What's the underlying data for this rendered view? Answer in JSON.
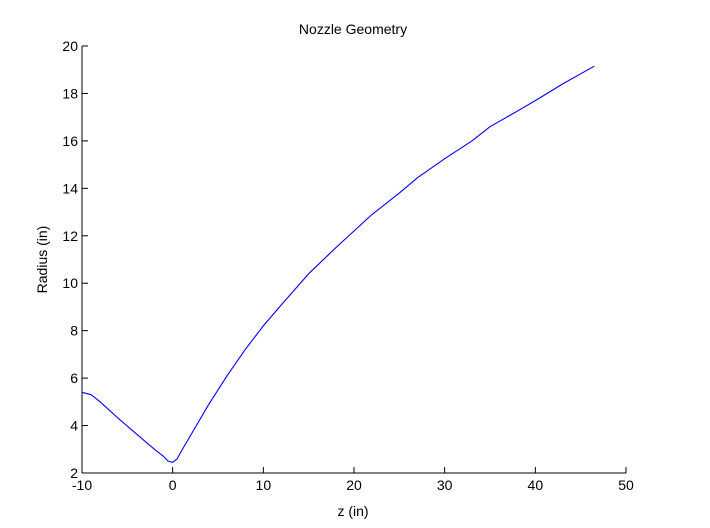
{
  "chart_data": {
    "type": "line",
    "title": "Nozzle Geometry",
    "xlabel": "z (in)",
    "ylabel": "Radius (in)",
    "xlim": [
      -10,
      50
    ],
    "ylim": [
      2,
      20
    ],
    "xticks": [
      -10,
      0,
      10,
      20,
      30,
      40,
      50
    ],
    "yticks": [
      2,
      4,
      6,
      8,
      10,
      12,
      14,
      16,
      18,
      20
    ],
    "grid": false,
    "legend": "none",
    "series": [
      {
        "color": "#0000ff",
        "x": [
          -10,
          -9,
          -8,
          -6,
          -4,
          -2,
          -1,
          -0.5,
          0,
          0.5,
          1,
          2,
          4,
          6,
          8,
          10,
          12,
          15,
          18,
          20,
          22,
          25,
          27,
          30,
          33,
          35,
          38,
          40,
          43,
          46.5
        ],
        "y": [
          5.4,
          5.3,
          5.0,
          4.3,
          3.65,
          3.0,
          2.7,
          2.5,
          2.45,
          2.6,
          2.95,
          3.6,
          4.9,
          6.1,
          7.2,
          8.2,
          9.1,
          10.4,
          11.5,
          12.2,
          12.9,
          13.8,
          14.45,
          15.25,
          16.0,
          16.6,
          17.25,
          17.7,
          18.4,
          19.15
        ]
      }
    ]
  }
}
